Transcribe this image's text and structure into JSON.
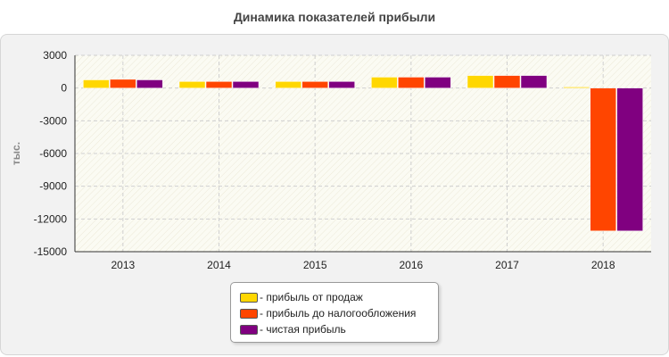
{
  "chart_data": {
    "type": "bar",
    "title": "Динамика показателей прибыли",
    "ylabel": "тыс.",
    "xlabel": "",
    "categories": [
      "2013",
      "2014",
      "2015",
      "2016",
      "2017",
      "2018"
    ],
    "ylim": [
      -15000,
      3000
    ],
    "yticks": [
      3000,
      0,
      -3000,
      -6000,
      -9000,
      -12000,
      -15000
    ],
    "ytick_labels": [
      "3000",
      "0",
      "-3000",
      "-6000",
      "-9000",
      "-12000",
      "-15000"
    ],
    "grid": true,
    "legend_position": "bottom-center",
    "series": [
      {
        "name": "прибыль от продаж",
        "color": "#ffd700",
        "values": [
          750,
          600,
          600,
          1000,
          1150,
          100
        ]
      },
      {
        "name": "прибыль до налогообложения",
        "color": "#ff4500",
        "values": [
          800,
          600,
          600,
          1000,
          1150,
          -13100
        ]
      },
      {
        "name": "чистая прибыль",
        "color": "#800080",
        "values": [
          750,
          600,
          600,
          1000,
          1150,
          -13100
        ]
      }
    ]
  }
}
